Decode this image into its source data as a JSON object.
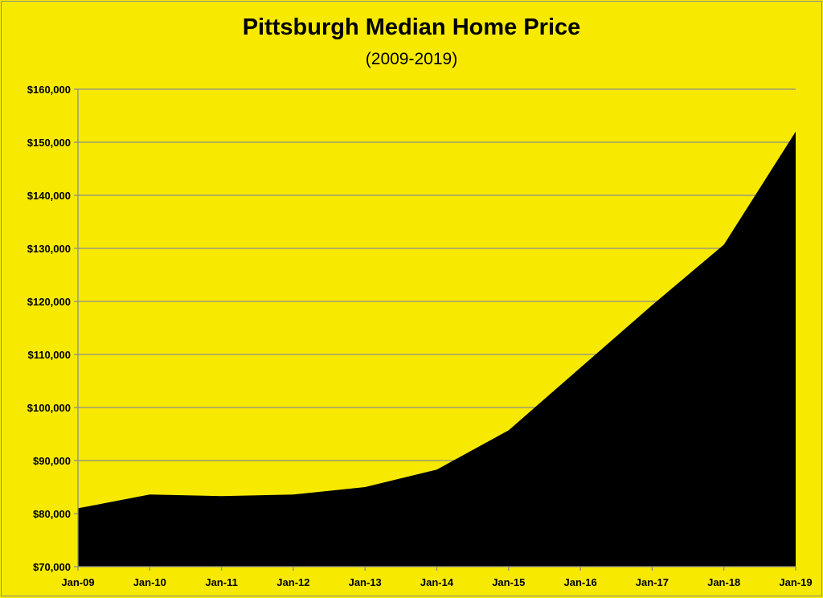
{
  "chart_data": {
    "type": "area",
    "title": "Pittsburgh Median Home Price",
    "subtitle": "(2009-2019)",
    "xlabel": "",
    "ylabel": "",
    "categories": [
      "Jan-09",
      "Jan-10",
      "Jan-11",
      "Jan-12",
      "Jan-13",
      "Jan-14",
      "Jan-15",
      "Jan-16",
      "Jan-17",
      "Jan-18",
      "Jan-19"
    ],
    "series": [
      {
        "values": [
          81000,
          83600,
          83300,
          83600,
          85000,
          88300,
          95700,
          107500,
          119300,
          130700,
          152000
        ]
      }
    ],
    "ylim": [
      70000,
      160000
    ],
    "y_ticks": [
      70000,
      80000,
      90000,
      100000,
      110000,
      120000,
      130000,
      140000,
      150000,
      160000
    ],
    "y_tick_labels": [
      "$70,000",
      "$80,000",
      "$90,000",
      "$100,000",
      "$110,000",
      "$120,000",
      "$130,000",
      "$140,000",
      "$150,000",
      "$160,000"
    ],
    "grid": true,
    "colors": {
      "background": "#f7ea00",
      "fill": "#000000",
      "grid": "#8c8c8c"
    }
  }
}
